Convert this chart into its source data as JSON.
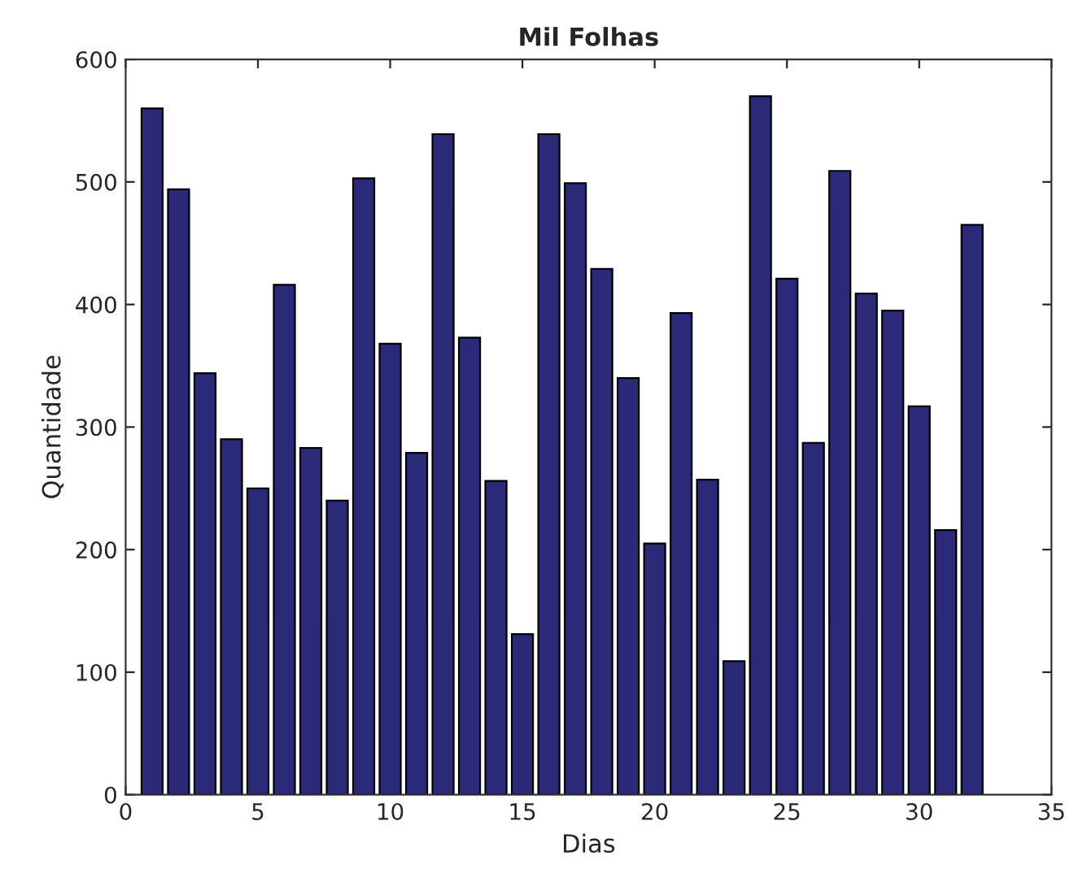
{
  "chart_data": {
    "type": "bar",
    "title": "Mil Folhas",
    "xlabel": "Dias",
    "ylabel": "Quantidade",
    "x": [
      1,
      2,
      3,
      4,
      5,
      6,
      7,
      8,
      9,
      10,
      11,
      12,
      13,
      14,
      15,
      16,
      17,
      18,
      19,
      20,
      21,
      22,
      23,
      24,
      25,
      26,
      27,
      28,
      29,
      30,
      31,
      32
    ],
    "values": [
      560,
      494,
      344,
      290,
      250,
      416,
      283,
      240,
      503,
      368,
      279,
      539,
      373,
      256,
      131,
      539,
      499,
      429,
      340,
      205,
      393,
      257,
      109,
      570,
      421,
      287,
      509,
      409,
      395,
      317,
      216,
      465
    ],
    "color": "#2b2a78",
    "xlim": [
      0,
      35
    ],
    "xticks": [
      0,
      5,
      10,
      15,
      20,
      25,
      30,
      35
    ],
    "ylim": [
      0,
      600
    ],
    "yticks": [
      0,
      100,
      200,
      300,
      400,
      500,
      600
    ],
    "grid": false,
    "legend": false
  }
}
